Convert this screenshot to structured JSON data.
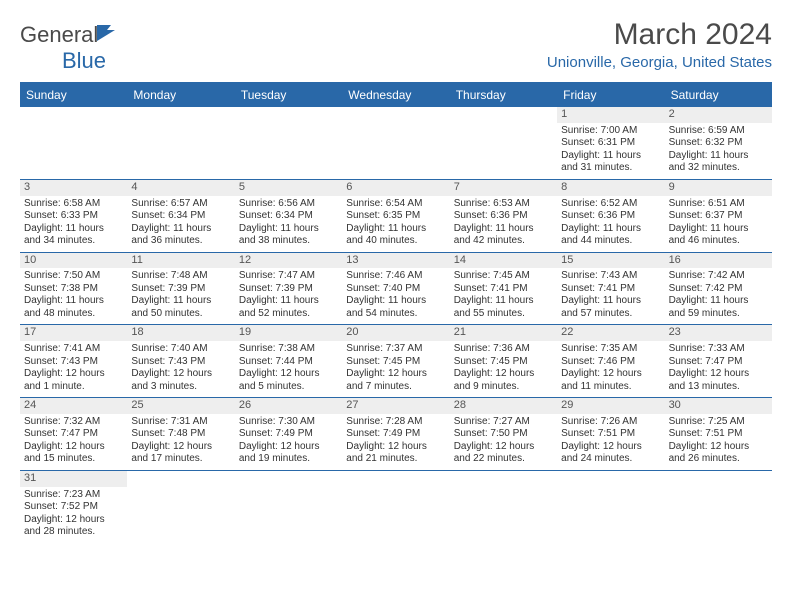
{
  "logo": {
    "text1": "General",
    "text2": "Blue"
  },
  "title": "March 2024",
  "location": "Unionville, Georgia, United States",
  "dayHeaders": [
    "Sunday",
    "Monday",
    "Tuesday",
    "Wednesday",
    "Thursday",
    "Friday",
    "Saturday"
  ],
  "colors": {
    "accent": "#2968a8",
    "headerBg": "#2968a8",
    "dayNumBg": "#eeeeee",
    "text": "#333333"
  },
  "fonts": {
    "title_pt": 30,
    "location_pt": 15,
    "header_pt": 12,
    "cell_pt": 10
  },
  "layout": {
    "cols": 7,
    "rows": 6,
    "startOffset": 5
  },
  "days": [
    {
      "n": "1",
      "sunrise": "Sunrise: 7:00 AM",
      "sunset": "Sunset: 6:31 PM",
      "daylight1": "Daylight: 11 hours",
      "daylight2": "and 31 minutes."
    },
    {
      "n": "2",
      "sunrise": "Sunrise: 6:59 AM",
      "sunset": "Sunset: 6:32 PM",
      "daylight1": "Daylight: 11 hours",
      "daylight2": "and 32 minutes."
    },
    {
      "n": "3",
      "sunrise": "Sunrise: 6:58 AM",
      "sunset": "Sunset: 6:33 PM",
      "daylight1": "Daylight: 11 hours",
      "daylight2": "and 34 minutes."
    },
    {
      "n": "4",
      "sunrise": "Sunrise: 6:57 AM",
      "sunset": "Sunset: 6:34 PM",
      "daylight1": "Daylight: 11 hours",
      "daylight2": "and 36 minutes."
    },
    {
      "n": "5",
      "sunrise": "Sunrise: 6:56 AM",
      "sunset": "Sunset: 6:34 PM",
      "daylight1": "Daylight: 11 hours",
      "daylight2": "and 38 minutes."
    },
    {
      "n": "6",
      "sunrise": "Sunrise: 6:54 AM",
      "sunset": "Sunset: 6:35 PM",
      "daylight1": "Daylight: 11 hours",
      "daylight2": "and 40 minutes."
    },
    {
      "n": "7",
      "sunrise": "Sunrise: 6:53 AM",
      "sunset": "Sunset: 6:36 PM",
      "daylight1": "Daylight: 11 hours",
      "daylight2": "and 42 minutes."
    },
    {
      "n": "8",
      "sunrise": "Sunrise: 6:52 AM",
      "sunset": "Sunset: 6:36 PM",
      "daylight1": "Daylight: 11 hours",
      "daylight2": "and 44 minutes."
    },
    {
      "n": "9",
      "sunrise": "Sunrise: 6:51 AM",
      "sunset": "Sunset: 6:37 PM",
      "daylight1": "Daylight: 11 hours",
      "daylight2": "and 46 minutes."
    },
    {
      "n": "10",
      "sunrise": "Sunrise: 7:50 AM",
      "sunset": "Sunset: 7:38 PM",
      "daylight1": "Daylight: 11 hours",
      "daylight2": "and 48 minutes."
    },
    {
      "n": "11",
      "sunrise": "Sunrise: 7:48 AM",
      "sunset": "Sunset: 7:39 PM",
      "daylight1": "Daylight: 11 hours",
      "daylight2": "and 50 minutes."
    },
    {
      "n": "12",
      "sunrise": "Sunrise: 7:47 AM",
      "sunset": "Sunset: 7:39 PM",
      "daylight1": "Daylight: 11 hours",
      "daylight2": "and 52 minutes."
    },
    {
      "n": "13",
      "sunrise": "Sunrise: 7:46 AM",
      "sunset": "Sunset: 7:40 PM",
      "daylight1": "Daylight: 11 hours",
      "daylight2": "and 54 minutes."
    },
    {
      "n": "14",
      "sunrise": "Sunrise: 7:45 AM",
      "sunset": "Sunset: 7:41 PM",
      "daylight1": "Daylight: 11 hours",
      "daylight2": "and 55 minutes."
    },
    {
      "n": "15",
      "sunrise": "Sunrise: 7:43 AM",
      "sunset": "Sunset: 7:41 PM",
      "daylight1": "Daylight: 11 hours",
      "daylight2": "and 57 minutes."
    },
    {
      "n": "16",
      "sunrise": "Sunrise: 7:42 AM",
      "sunset": "Sunset: 7:42 PM",
      "daylight1": "Daylight: 11 hours",
      "daylight2": "and 59 minutes."
    },
    {
      "n": "17",
      "sunrise": "Sunrise: 7:41 AM",
      "sunset": "Sunset: 7:43 PM",
      "daylight1": "Daylight: 12 hours",
      "daylight2": "and 1 minute."
    },
    {
      "n": "18",
      "sunrise": "Sunrise: 7:40 AM",
      "sunset": "Sunset: 7:43 PM",
      "daylight1": "Daylight: 12 hours",
      "daylight2": "and 3 minutes."
    },
    {
      "n": "19",
      "sunrise": "Sunrise: 7:38 AM",
      "sunset": "Sunset: 7:44 PM",
      "daylight1": "Daylight: 12 hours",
      "daylight2": "and 5 minutes."
    },
    {
      "n": "20",
      "sunrise": "Sunrise: 7:37 AM",
      "sunset": "Sunset: 7:45 PM",
      "daylight1": "Daylight: 12 hours",
      "daylight2": "and 7 minutes."
    },
    {
      "n": "21",
      "sunrise": "Sunrise: 7:36 AM",
      "sunset": "Sunset: 7:45 PM",
      "daylight1": "Daylight: 12 hours",
      "daylight2": "and 9 minutes."
    },
    {
      "n": "22",
      "sunrise": "Sunrise: 7:35 AM",
      "sunset": "Sunset: 7:46 PM",
      "daylight1": "Daylight: 12 hours",
      "daylight2": "and 11 minutes."
    },
    {
      "n": "23",
      "sunrise": "Sunrise: 7:33 AM",
      "sunset": "Sunset: 7:47 PM",
      "daylight1": "Daylight: 12 hours",
      "daylight2": "and 13 minutes."
    },
    {
      "n": "24",
      "sunrise": "Sunrise: 7:32 AM",
      "sunset": "Sunset: 7:47 PM",
      "daylight1": "Daylight: 12 hours",
      "daylight2": "and 15 minutes."
    },
    {
      "n": "25",
      "sunrise": "Sunrise: 7:31 AM",
      "sunset": "Sunset: 7:48 PM",
      "daylight1": "Daylight: 12 hours",
      "daylight2": "and 17 minutes."
    },
    {
      "n": "26",
      "sunrise": "Sunrise: 7:30 AM",
      "sunset": "Sunset: 7:49 PM",
      "daylight1": "Daylight: 12 hours",
      "daylight2": "and 19 minutes."
    },
    {
      "n": "27",
      "sunrise": "Sunrise: 7:28 AM",
      "sunset": "Sunset: 7:49 PM",
      "daylight1": "Daylight: 12 hours",
      "daylight2": "and 21 minutes."
    },
    {
      "n": "28",
      "sunrise": "Sunrise: 7:27 AM",
      "sunset": "Sunset: 7:50 PM",
      "daylight1": "Daylight: 12 hours",
      "daylight2": "and 22 minutes."
    },
    {
      "n": "29",
      "sunrise": "Sunrise: 7:26 AM",
      "sunset": "Sunset: 7:51 PM",
      "daylight1": "Daylight: 12 hours",
      "daylight2": "and 24 minutes."
    },
    {
      "n": "30",
      "sunrise": "Sunrise: 7:25 AM",
      "sunset": "Sunset: 7:51 PM",
      "daylight1": "Daylight: 12 hours",
      "daylight2": "and 26 minutes."
    },
    {
      "n": "31",
      "sunrise": "Sunrise: 7:23 AM",
      "sunset": "Sunset: 7:52 PM",
      "daylight1": "Daylight: 12 hours",
      "daylight2": "and 28 minutes."
    }
  ]
}
